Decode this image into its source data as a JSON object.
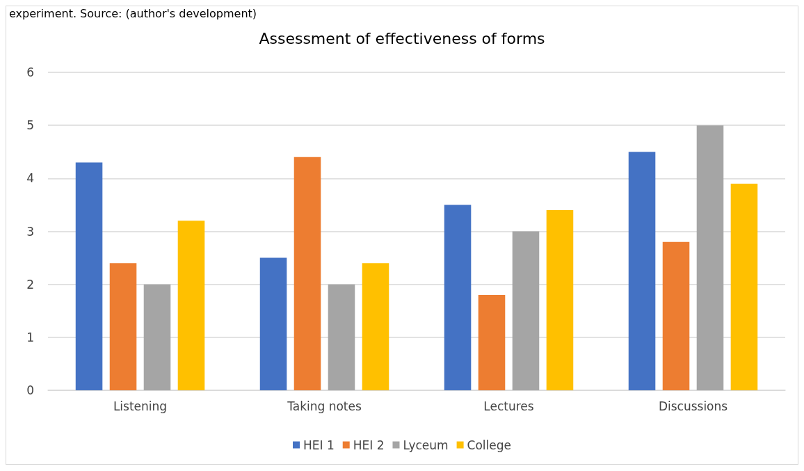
{
  "chart_data": {
    "type": "bar",
    "title": "Assessment of effectiveness of forms",
    "annotations": [
      "experiment. Source: (author's development)"
    ],
    "categories": [
      "Listening",
      "Taking notes",
      "Lectures",
      "Discussions"
    ],
    "series": [
      {
        "name": "HEI 1",
        "color": "#4472c4",
        "values": [
          4.3,
          2.5,
          3.5,
          4.5
        ]
      },
      {
        "name": "HEI 2",
        "color": "#ed7d31",
        "values": [
          2.4,
          4.4,
          1.8,
          2.8
        ]
      },
      {
        "name": "Lyceum",
        "color": "#a5a5a5",
        "values": [
          2.0,
          2.0,
          3.0,
          5.0
        ]
      },
      {
        "name": "College",
        "color": "#ffc000",
        "values": [
          3.2,
          2.4,
          3.4,
          3.9
        ]
      }
    ],
    "ylim": [
      0,
      6
    ],
    "yticks": [
      0,
      1,
      2,
      3,
      4,
      5,
      6
    ],
    "grid": "y",
    "legend": "bottom"
  }
}
